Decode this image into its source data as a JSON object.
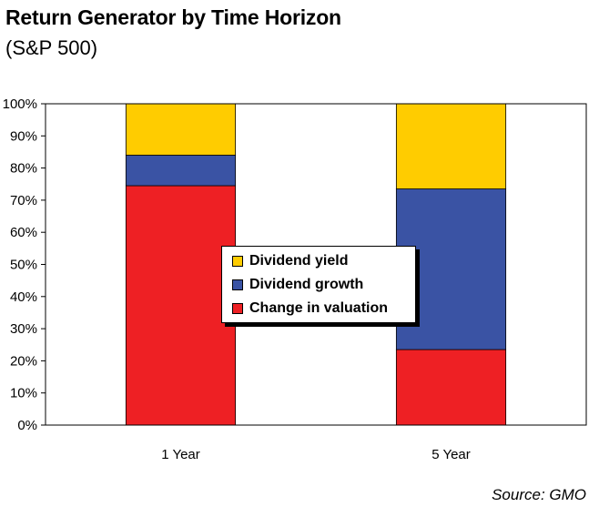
{
  "chart_data": {
    "type": "bar",
    "stacked": true,
    "title": "Return Generator by Time Horizon",
    "subtitle": "(S&P 500)",
    "categories": [
      "1 Year",
      "5 Year"
    ],
    "series": [
      {
        "name": "Change in valuation",
        "color": "#ee2024",
        "values": [
          74.5,
          23.5
        ]
      },
      {
        "name": "Dividend growth",
        "color": "#3a53a4",
        "values": [
          9.5,
          50
        ]
      },
      {
        "name": "Dividend yield",
        "color": "#ffcc00",
        "values": [
          16,
          26.5
        ]
      }
    ],
    "legend_order": [
      "Dividend yield",
      "Dividend growth",
      "Change in valuation"
    ],
    "yticks": [
      "0%",
      "10%",
      "20%",
      "30%",
      "40%",
      "50%",
      "60%",
      "70%",
      "80%",
      "90%",
      "100%"
    ],
    "ylim": [
      0,
      100
    ],
    "grid": false,
    "legend_position": "center",
    "source": "Source: GMO"
  }
}
